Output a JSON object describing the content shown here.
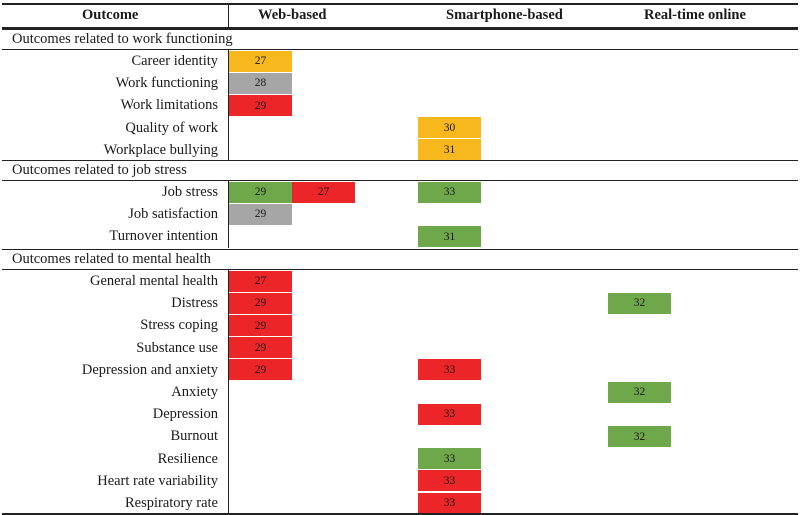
{
  "colors": {
    "orange": "#f6b81c",
    "gray": "#a6a6a6",
    "red": "#ec2628",
    "green": "#6fa84a"
  },
  "header": {
    "outcome": "Outcome",
    "web": "Web-based",
    "smartphone": "Smartphone-based",
    "realtime": "Real-time online"
  },
  "sections": [
    {
      "title": "Outcomes related to work functioning",
      "rows": [
        {
          "label": "Career identity",
          "cells": [
            {
              "col": "web",
              "slot": 0,
              "value": "27",
              "color": "orange"
            }
          ]
        },
        {
          "label": "Work functioning",
          "cells": [
            {
              "col": "web",
              "slot": 0,
              "value": "28",
              "color": "gray"
            }
          ]
        },
        {
          "label": "Work limitations",
          "cells": [
            {
              "col": "web",
              "slot": 0,
              "value": "29",
              "color": "red"
            }
          ]
        },
        {
          "label": "Quality of work",
          "cells": [
            {
              "col": "smartphone",
              "slot": 0,
              "value": "30",
              "color": "orange"
            }
          ]
        },
        {
          "label": "Workplace bullying",
          "cells": [
            {
              "col": "smartphone",
              "slot": 0,
              "value": "31",
              "color": "orange"
            }
          ]
        }
      ]
    },
    {
      "title": "Outcomes related to job stress",
      "rows": [
        {
          "label": "Job stress",
          "cells": [
            {
              "col": "web",
              "slot": 0,
              "value": "29",
              "color": "green"
            },
            {
              "col": "web",
              "slot": 1,
              "value": "27",
              "color": "red"
            },
            {
              "col": "smartphone",
              "slot": 0,
              "value": "33",
              "color": "green"
            }
          ]
        },
        {
          "label": "Job satisfaction",
          "cells": [
            {
              "col": "web",
              "slot": 0,
              "value": "29",
              "color": "gray"
            }
          ]
        },
        {
          "label": "Turnover intention",
          "cells": [
            {
              "col": "smartphone",
              "slot": 0,
              "value": "31",
              "color": "green"
            }
          ]
        }
      ]
    },
    {
      "title": "Outcomes related to mental health",
      "rows": [
        {
          "label": "General mental health",
          "cells": [
            {
              "col": "web",
              "slot": 0,
              "value": "27",
              "color": "red"
            }
          ]
        },
        {
          "label": "Distress",
          "cells": [
            {
              "col": "web",
              "slot": 0,
              "value": "29",
              "color": "red"
            },
            {
              "col": "realtime",
              "slot": 0,
              "value": "32",
              "color": "green"
            }
          ]
        },
        {
          "label": "Stress coping",
          "cells": [
            {
              "col": "web",
              "slot": 0,
              "value": "29",
              "color": "red"
            }
          ]
        },
        {
          "label": "Substance use",
          "cells": [
            {
              "col": "web",
              "slot": 0,
              "value": "29",
              "color": "red"
            }
          ]
        },
        {
          "label": "Depression and anxiety",
          "cells": [
            {
              "col": "web",
              "slot": 0,
              "value": "29",
              "color": "red"
            },
            {
              "col": "smartphone",
              "slot": 0,
              "value": "33",
              "color": "red"
            }
          ]
        },
        {
          "label": "Anxiety",
          "cells": [
            {
              "col": "realtime",
              "slot": 0,
              "value": "32",
              "color": "green"
            }
          ]
        },
        {
          "label": "Depression",
          "cells": [
            {
              "col": "smartphone",
              "slot": 0,
              "value": "33",
              "color": "red"
            }
          ]
        },
        {
          "label": "Burnout",
          "cells": [
            {
              "col": "realtime",
              "slot": 0,
              "value": "32",
              "color": "green"
            }
          ]
        },
        {
          "label": "Resilience",
          "cells": [
            {
              "col": "smartphone",
              "slot": 0,
              "value": "33",
              "color": "green"
            }
          ]
        },
        {
          "label": "Heart rate variability",
          "cells": [
            {
              "col": "smartphone",
              "slot": 0,
              "value": "33",
              "color": "red"
            }
          ]
        },
        {
          "label": "Respiratory rate",
          "cells": [
            {
              "col": "smartphone",
              "slot": 0,
              "value": "33",
              "color": "red"
            }
          ]
        }
      ]
    }
  ]
}
